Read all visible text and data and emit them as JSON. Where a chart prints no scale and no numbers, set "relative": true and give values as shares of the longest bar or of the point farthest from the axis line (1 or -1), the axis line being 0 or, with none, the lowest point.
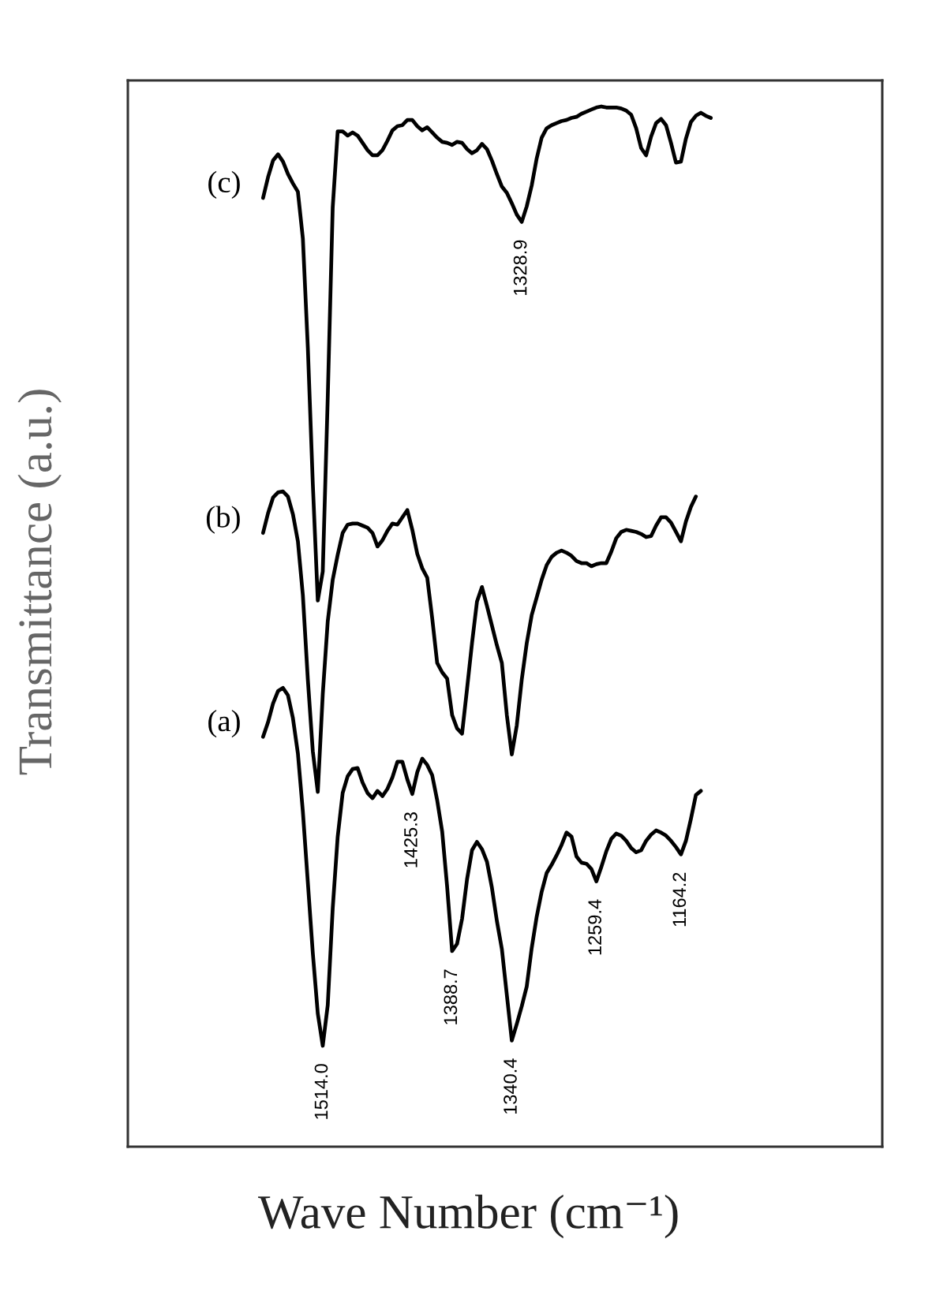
{
  "chart_data": {
    "type": "line",
    "xlabel": "Wave Number (cm⁻¹)",
    "ylabel": "Transmittance (a.u.)",
    "relative": true,
    "categories": [
      null,
      null,
      null,
      null,
      null,
      null,
      null,
      null,
      null,
      null,
      null,
      null,
      null,
      null,
      null,
      null,
      null,
      null,
      null,
      null,
      null,
      null,
      null,
      null,
      null,
      null,
      null,
      null,
      null,
      null,
      null,
      null,
      null,
      null,
      null,
      null,
      null,
      null,
      null,
      null,
      null,
      null,
      null,
      null,
      null,
      null,
      null,
      null,
      null,
      null,
      null,
      null,
      null,
      null,
      null,
      null,
      null,
      null,
      null,
      null,
      null,
      null,
      null,
      null,
      null,
      null,
      null,
      null,
      null,
      null,
      null,
      null,
      null,
      null,
      null,
      null,
      null,
      null,
      null,
      null,
      null,
      null,
      null,
      null,
      null,
      null,
      null,
      null,
      null,
      null,
      null
    ],
    "series": [
      {
        "name": "(a)",
        "color": "#000000",
        "values": [
          0.394,
          0.408,
          0.426,
          0.438,
          0.441,
          0.434,
          0.412,
          0.378,
          0.322,
          0.254,
          0.186,
          0.128,
          0.097,
          0.136,
          0.229,
          0.298,
          0.34,
          0.356,
          0.363,
          0.364,
          0.35,
          0.34,
          0.335,
          0.342,
          0.337,
          0.344,
          0.355,
          0.37,
          0.37,
          0.353,
          0.339,
          0.36,
          0.373,
          0.367,
          0.357,
          0.333,
          0.303,
          0.25,
          0.188,
          0.195,
          0.219,
          0.257,
          0.285,
          0.293,
          0.286,
          0.274,
          0.249,
          0.217,
          0.19,
          0.146,
          0.102,
          0.118,
          0.135,
          0.154,
          0.191,
          0.221,
          0.245,
          0.263,
          0.271,
          0.28,
          0.29,
          0.302,
          0.298,
          0.279,
          0.273,
          0.272,
          0.267,
          0.255,
          0.269,
          0.284,
          0.296,
          0.301,
          0.299,
          0.294,
          0.287,
          0.283,
          0.285,
          0.294,
          0.3,
          0.304,
          0.302,
          0.299,
          0.294,
          0.288,
          0.281,
          0.294,
          0.315,
          0.338,
          0.342,
          null,
          null
        ]
      },
      {
        "name": "(b)",
        "color": "#000000",
        "values": [
          0.59,
          0.609,
          0.624,
          0.629,
          0.63,
          0.625,
          0.608,
          0.582,
          0.53,
          0.449,
          0.38,
          0.341,
          0.435,
          0.505,
          0.545,
          0.569,
          0.59,
          0.598,
          0.599,
          0.599,
          0.597,
          0.595,
          0.59,
          0.577,
          0.583,
          0.592,
          0.599,
          0.598,
          0.605,
          0.612,
          0.593,
          0.57,
          0.556,
          0.547,
          0.508,
          0.465,
          0.456,
          0.45,
          0.415,
          0.402,
          0.397,
          0.44,
          0.484,
          0.524,
          0.538,
          0.52,
          0.501,
          0.482,
          0.465,
          0.415,
          0.377,
          0.405,
          0.449,
          0.484,
          0.511,
          0.528,
          0.545,
          0.559,
          0.567,
          0.571,
          0.573,
          0.571,
          0.568,
          0.563,
          0.561,
          0.561,
          0.558,
          0.56,
          0.561,
          0.561,
          0.572,
          0.585,
          0.591,
          0.593,
          0.592,
          0.591,
          0.589,
          0.586,
          0.587,
          0.597,
          0.605,
          0.605,
          0.6,
          0.591,
          0.582,
          0.601,
          0.615,
          0.625,
          null,
          null,
          null
        ]
      },
      {
        "name": "(c)",
        "color": "#000000",
        "values": [
          0.912,
          0.932,
          0.948,
          0.954,
          0.947,
          0.935,
          0.926,
          0.918,
          0.873,
          0.768,
          0.637,
          0.525,
          0.553,
          0.72,
          0.903,
          0.976,
          0.976,
          0.972,
          0.975,
          0.972,
          0.965,
          0.958,
          0.953,
          0.953,
          0.958,
          0.967,
          0.977,
          0.981,
          0.982,
          0.987,
          0.987,
          0.981,
          0.977,
          0.98,
          0.975,
          0.97,
          0.966,
          0.965,
          0.963,
          0.966,
          0.965,
          0.959,
          0.955,
          0.958,
          0.964,
          0.959,
          0.948,
          0.935,
          0.923,
          0.917,
          0.907,
          0.896,
          0.889,
          0.904,
          0.924,
          0.95,
          0.97,
          0.979,
          0.982,
          0.984,
          0.986,
          0.987,
          0.989,
          0.99,
          0.993,
          0.995,
          0.997,
          0.999,
          1.0,
          0.999,
          0.999,
          0.999,
          0.998,
          0.996,
          0.992,
          0.979,
          0.96,
          0.953,
          0.971,
          0.984,
          0.988,
          0.982,
          0.965,
          0.946,
          0.947,
          0.969,
          0.985,
          0.991,
          0.994,
          0.991,
          0.989
        ]
      }
    ],
    "annotations": [
      {
        "text": "1514.0",
        "y": 0.097
      },
      {
        "text": "1425.3",
        "y": 0.339
      },
      {
        "text": "1388.7",
        "y": 0.188
      },
      {
        "text": "1340.4",
        "y": 0.102
      },
      {
        "text": "1259.4",
        "y": 0.255
      },
      {
        "text": "1164.2",
        "y": 0.281
      },
      {
        "text": "1328.9",
        "y": 0.889
      }
    ]
  }
}
